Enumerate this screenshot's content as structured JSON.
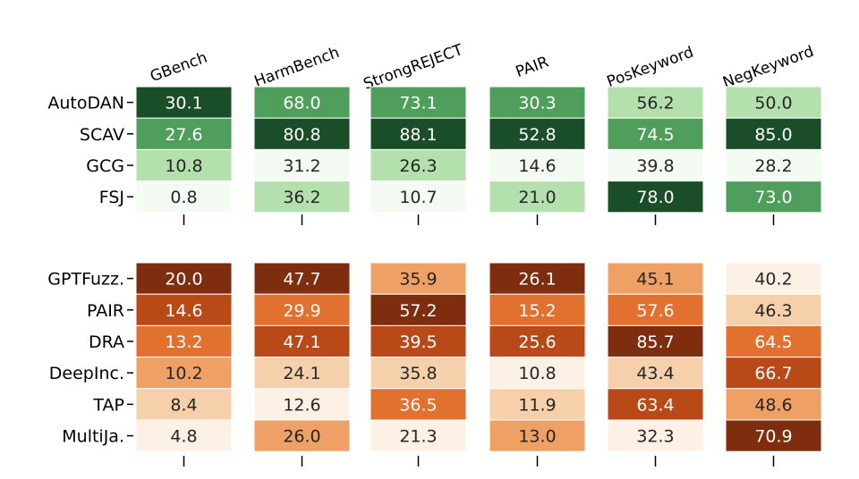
{
  "chart_data": {
    "type": "heatmap",
    "columns": [
      "GBench",
      "HarmBench",
      "StrongREJECT",
      "PAIR",
      "PosKeyword",
      "NegKeyword"
    ],
    "groups": [
      {
        "palette": "greens",
        "rows": [
          "AutoDAN",
          "SCAV",
          "GCG",
          "FSJ"
        ],
        "values": [
          [
            30.1,
            68.0,
            73.1,
            30.3,
            56.2,
            50.0
          ],
          [
            27.6,
            80.8,
            88.1,
            52.8,
            74.5,
            85.0
          ],
          [
            10.8,
            31.2,
            26.3,
            14.6,
            39.8,
            28.2
          ],
          [
            0.8,
            36.2,
            10.7,
            21.0,
            78.0,
            73.0
          ]
        ]
      },
      {
        "palette": "oranges",
        "rows": [
          "GPTFuzz.",
          "PAIR",
          "DRA",
          "DeepInc.",
          "TAP",
          "MultiJa."
        ],
        "values": [
          [
            20.0,
            47.7,
            35.9,
            26.1,
            45.1,
            40.2
          ],
          [
            14.6,
            29.9,
            57.2,
            15.2,
            57.6,
            46.3
          ],
          [
            13.2,
            47.1,
            39.5,
            25.6,
            85.7,
            64.5
          ],
          [
            10.2,
            24.1,
            35.8,
            10.8,
            43.4,
            66.7
          ],
          [
            8.4,
            12.6,
            36.5,
            11.9,
            63.4,
            48.6
          ],
          [
            4.8,
            26.0,
            21.3,
            13.0,
            32.3,
            70.9
          ]
        ]
      }
    ],
    "colormap": "per-column rank within group",
    "value_format": "one decimal"
  }
}
